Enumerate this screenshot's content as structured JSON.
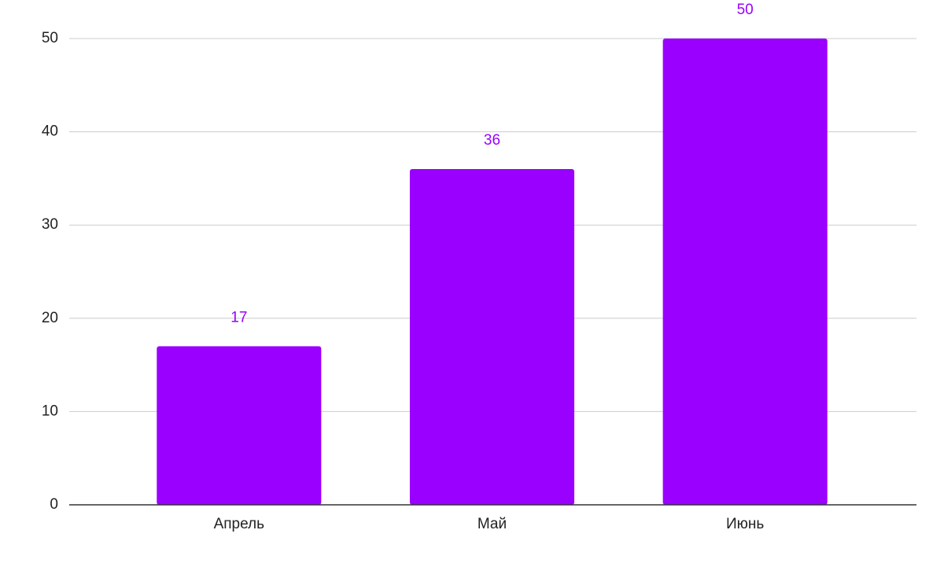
{
  "chart_data": {
    "type": "bar",
    "categories": [
      "Апрель",
      "Май",
      "Июнь"
    ],
    "values": [
      17,
      36,
      50
    ],
    "color": "#9900ff",
    "ylim": [
      0,
      50
    ],
    "yticks": [
      0,
      10,
      20,
      30,
      40,
      50
    ],
    "grid": true,
    "data_labels": true
  }
}
